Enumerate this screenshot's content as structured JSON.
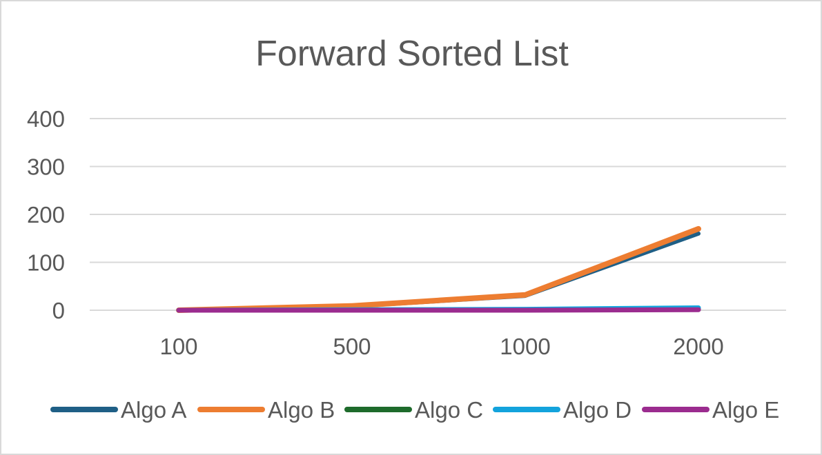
{
  "chart_data": {
    "type": "line",
    "title": "Forward Sorted List",
    "xlabel": "",
    "ylabel": "",
    "categories": [
      "100",
      "500",
      "1000",
      "2000"
    ],
    "ylim": [
      0,
      400
    ],
    "yticks": [
      0,
      100,
      200,
      300,
      400
    ],
    "grid": true,
    "legend_position": "bottom",
    "series": [
      {
        "name": "Algo A",
        "color": "#1f5f86",
        "values": [
          0,
          8,
          30,
          160
        ]
      },
      {
        "name": "Algo B",
        "color": "#ed7d31",
        "values": [
          0,
          9,
          32,
          170
        ]
      },
      {
        "name": "Algo C",
        "color": "#1e6b2c",
        "values": [
          0,
          0,
          1,
          2
        ]
      },
      {
        "name": "Algo D",
        "color": "#13a3dc",
        "values": [
          0,
          1,
          2,
          5
        ]
      },
      {
        "name": "Algo E",
        "color": "#9b2c8f",
        "values": [
          0,
          0,
          0,
          1
        ]
      }
    ]
  }
}
